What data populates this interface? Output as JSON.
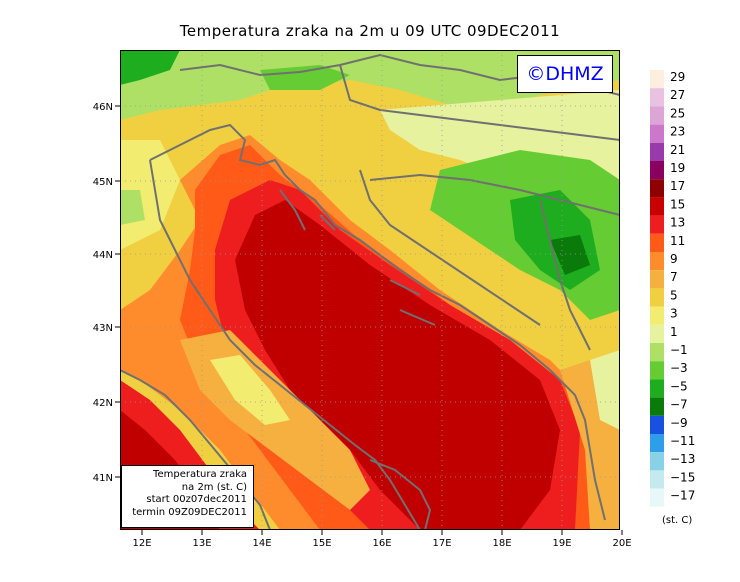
{
  "title": "Temperatura zraka na 2m u 09 UTC 09DEC2011",
  "copyright": "©DHMZ",
  "info_box": {
    "line1": "Temperatura zraka",
    "line2": "na 2m (st. C)",
    "line3": "start 00z07dec2011",
    "line4": "termin 09Z09DEC2011"
  },
  "x_axis_labels": [
    "12E",
    "13E",
    "14E",
    "15E",
    "16E",
    "17E",
    "18E",
    "19E",
    "20E"
  ],
  "y_axis_labels": [
    "46N",
    "45N",
    "44N",
    "43N",
    "42N",
    "41N"
  ],
  "legend": {
    "unit": "(st. C)",
    "labels": [
      "29",
      "27",
      "25",
      "23",
      "21",
      "19",
      "17",
      "15",
      "13",
      "11",
      "9",
      "7",
      "5",
      "3",
      "1",
      "−1",
      "−3",
      "−5",
      "−7",
      "−9",
      "−11",
      "−13",
      "−15",
      "−17"
    ],
    "colors": [
      "#fdeee0",
      "#e8c2e0",
      "#dda5d5",
      "#cc77cc",
      "#9a3aaa",
      "#8a0060",
      "#8e0000",
      "#c80000",
      "#ee1e1e",
      "#ff5a18",
      "#ff8c2c",
      "#f5b040",
      "#f0d040",
      "#f2ec70",
      "#e6f29e",
      "#aee066",
      "#66cc33",
      "#1ead1e",
      "#0a7a0a",
      "#1850e0",
      "#2f9ee8",
      "#88d2e8",
      "#c4eaf0",
      "#e8f8f8"
    ]
  },
  "colors": {
    "sea_deep": "#c00000",
    "sea_warm": "#ee1e1e",
    "coast_warm": "#ff6428",
    "land_mild": "#f0d040",
    "land_cool": "#aee066",
    "land_cold": "#66cc33",
    "coastline": "#707070"
  }
}
